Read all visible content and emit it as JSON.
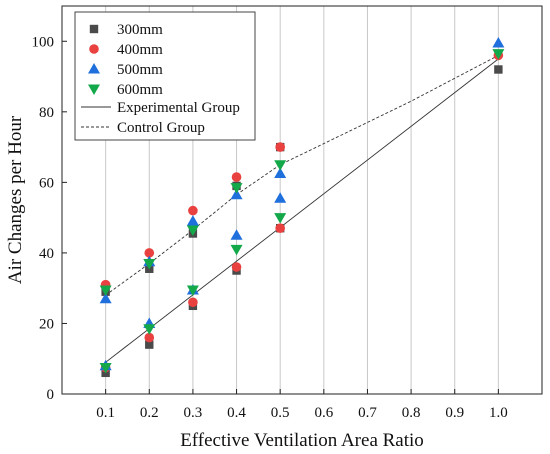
{
  "chart_data": {
    "type": "scatter",
    "xlabel": "Effective Ventilation Area Ratio",
    "ylabel": "Air Changes per Hour",
    "xlim": [
      0.0,
      1.1
    ],
    "ylim": [
      0,
      110
    ],
    "x_ticks": [
      "0.1",
      "0.2",
      "0.3",
      "0.4",
      "0.5",
      "0.6",
      "0.7",
      "0.8",
      "0.9",
      "1.0"
    ],
    "y_ticks": [
      "0",
      "20",
      "40",
      "60",
      "80",
      "100"
    ],
    "grid": "vertical",
    "legend_position": "top-left",
    "series": [
      {
        "name": "300mm",
        "marker": "square",
        "color": "#4a4a4a",
        "points": [
          [
            0.1,
            6
          ],
          [
            0.1,
            29
          ],
          [
            0.2,
            14
          ],
          [
            0.2,
            35.5
          ],
          [
            0.3,
            25
          ],
          [
            0.3,
            45.5
          ],
          [
            0.4,
            35
          ],
          [
            0.4,
            59
          ],
          [
            0.5,
            47
          ],
          [
            0.5,
            70
          ],
          [
            1.0,
            92
          ]
        ]
      },
      {
        "name": "400mm",
        "marker": "circle",
        "color": "#e8413f",
        "points": [
          [
            0.1,
            7.5
          ],
          [
            0.1,
            31
          ],
          [
            0.2,
            16
          ],
          [
            0.2,
            40
          ],
          [
            0.3,
            26
          ],
          [
            0.3,
            52
          ],
          [
            0.4,
            36
          ],
          [
            0.4,
            61.5
          ],
          [
            0.5,
            47
          ],
          [
            0.5,
            70
          ],
          [
            1.0,
            96
          ]
        ]
      },
      {
        "name": "500mm",
        "marker": "triangle-up",
        "color": "#1f6fdc",
        "points": [
          [
            0.1,
            8
          ],
          [
            0.1,
            27
          ],
          [
            0.2,
            20
          ],
          [
            0.2,
            37.5
          ],
          [
            0.3,
            29.5
          ],
          [
            0.3,
            49
          ],
          [
            0.4,
            45
          ],
          [
            0.4,
            56.5
          ],
          [
            0.5,
            55.5
          ],
          [
            0.5,
            62.5
          ],
          [
            1.0,
            99.5
          ]
        ]
      },
      {
        "name": "600mm",
        "marker": "triangle-down",
        "color": "#13a84a",
        "points": [
          [
            0.1,
            7.5
          ],
          [
            0.1,
            29.5
          ],
          [
            0.2,
            18.5
          ],
          [
            0.2,
            37
          ],
          [
            0.3,
            29.5
          ],
          [
            0.3,
            46.5
          ],
          [
            0.4,
            41
          ],
          [
            0.4,
            58.5
          ],
          [
            0.5,
            50
          ],
          [
            0.5,
            65
          ],
          [
            1.0,
            96.5
          ]
        ]
      }
    ],
    "fit_lines": [
      {
        "name": "Experimental Group",
        "style": "solid",
        "color": "#333333",
        "points": [
          [
            0.1,
            9
          ],
          [
            1.0,
            95
          ]
        ]
      },
      {
        "name": "Control Group",
        "style": "dashed",
        "color": "#333333",
        "points": [
          [
            0.1,
            28
          ],
          [
            0.2,
            37
          ],
          [
            0.3,
            46.5
          ],
          [
            0.4,
            56.5
          ],
          [
            0.5,
            65
          ],
          [
            0.6,
            71
          ],
          [
            0.7,
            77
          ],
          [
            0.8,
            83
          ],
          [
            0.9,
            89.5
          ],
          [
            1.0,
            96
          ]
        ]
      }
    ]
  }
}
